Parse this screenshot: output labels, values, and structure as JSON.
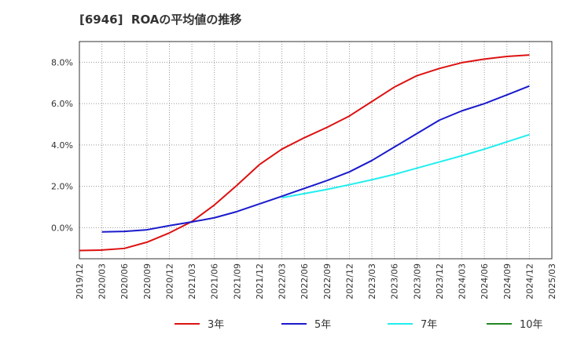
{
  "chart_data": {
    "type": "line",
    "title": "[6946]  ROAの平均値の推移",
    "xlabel": "",
    "ylabel": "",
    "x": [
      "2019/12",
      "2020/03",
      "2020/06",
      "2020/09",
      "2020/12",
      "2021/03",
      "2021/06",
      "2021/09",
      "2021/12",
      "2022/03",
      "2022/06",
      "2022/09",
      "2022/12",
      "2023/03",
      "2023/06",
      "2023/09",
      "2023/12",
      "2024/03",
      "2024/06",
      "2024/09",
      "2024/12",
      "2025/03"
    ],
    "ylim": [
      -1.5,
      9.0
    ],
    "yticks": [
      0,
      2,
      4,
      6,
      8
    ],
    "ytick_labels": [
      "0.0%",
      "2.0%",
      "4.0%",
      "6.0%",
      "8.0%"
    ],
    "grid": true,
    "legend_position": "bottom",
    "series": [
      {
        "name": "3年",
        "color": "#dd1111",
        "values": [
          -1.1,
          -1.08,
          -1.0,
          -0.7,
          -0.25,
          0.3,
          1.1,
          2.05,
          3.05,
          3.8,
          4.35,
          4.85,
          5.4,
          6.1,
          6.8,
          7.35,
          7.7,
          7.98,
          8.15,
          8.28,
          8.35,
          null
        ]
      },
      {
        "name": "5年",
        "color": "#1a1acc",
        "values": [
          null,
          -0.2,
          -0.18,
          -0.1,
          0.1,
          0.28,
          0.48,
          0.78,
          1.15,
          1.52,
          1.9,
          2.28,
          2.7,
          3.25,
          3.9,
          4.55,
          5.2,
          5.65,
          6.0,
          6.42,
          6.85,
          null
        ]
      },
      {
        "name": "7年",
        "color": "#22eeee",
        "values": [
          null,
          null,
          null,
          null,
          null,
          null,
          null,
          null,
          null,
          1.45,
          1.65,
          1.85,
          2.08,
          2.32,
          2.58,
          2.88,
          3.18,
          3.48,
          3.8,
          4.15,
          4.5,
          null
        ]
      },
      {
        "name": "10年",
        "color": "#228822",
        "values": [
          null,
          null,
          null,
          null,
          null,
          null,
          null,
          null,
          null,
          null,
          null,
          null,
          null,
          null,
          null,
          null,
          null,
          null,
          null,
          null,
          null,
          null
        ]
      }
    ]
  }
}
